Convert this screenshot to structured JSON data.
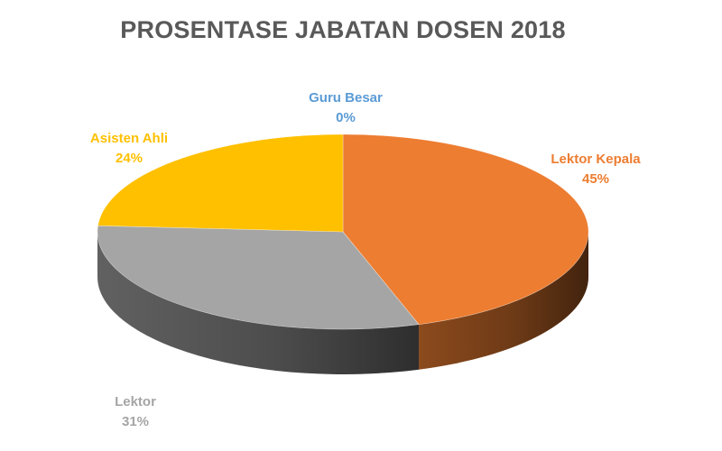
{
  "chart_data": {
    "type": "pie",
    "title": "PROSENTASE JABATAN DOSEN 2018",
    "slices": [
      {
        "name": "Guru Besar",
        "value": 0,
        "label": "0%",
        "color": "#5B9BD5"
      },
      {
        "name": "Lektor Kepala",
        "value": 45,
        "label": "45%",
        "color": "#ED7D31"
      },
      {
        "name": "Lektor",
        "value": 31,
        "label": "31%",
        "color": "#A5A5A5"
      },
      {
        "name": "Asisten Ahli",
        "value": 24,
        "label": "24%",
        "color": "#FFC000"
      }
    ],
    "start_angle_deg": -90,
    "direction": "clockwise",
    "style": "3d-pie",
    "legend": "none"
  }
}
